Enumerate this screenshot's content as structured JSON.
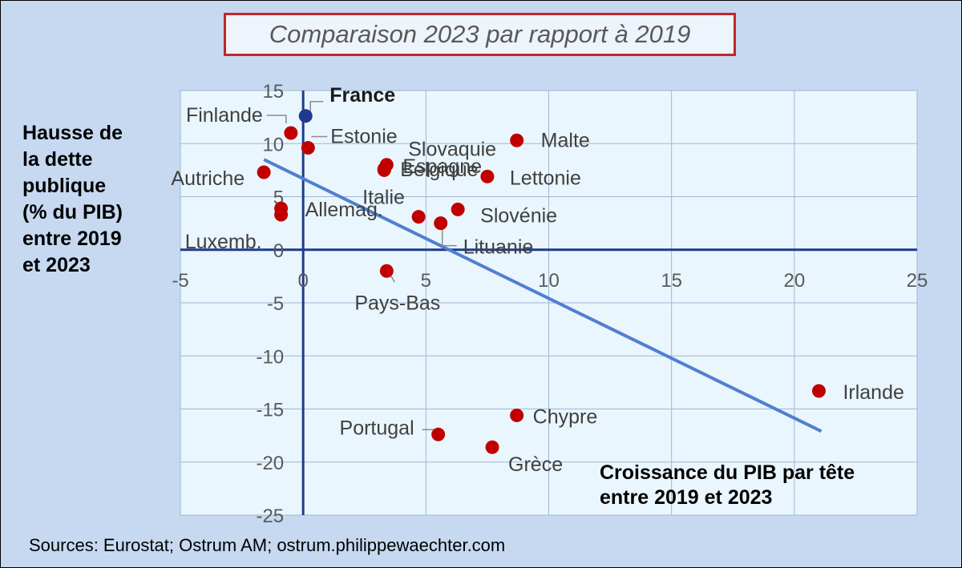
{
  "title": "Comparaison 2023 par rapport à 2019",
  "ylabel": "Hausse de\nla dette\npublique\n(% du PIB)\nentre 2019\net 2023",
  "xlabel": "Croissance du PIB par tête\nentre 2019 et 2023",
  "sources": "Sources: Eurostat; Ostrum AM; ostrum.philippewaechter.com",
  "colors": {
    "background": "#c6d9f1",
    "plot_area": "#eaf6fd",
    "grid": "#9fb7d3",
    "axis": "#1f3a8a",
    "point": "#c00000",
    "france_point": "#1f3a93",
    "trend": "#4f7fd0",
    "title_border": "#c0272d",
    "label_text": "#404040"
  },
  "chart_data": {
    "type": "scatter",
    "title": "Comparaison 2023 par rapport à 2019",
    "xlabel": "Croissance du PIB par tête entre 2019 et 2023",
    "ylabel": "Hausse de la dette publique (% du PIB) entre 2019 et 2023",
    "xlim": [
      -5,
      25
    ],
    "ylim": [
      -25,
      15
    ],
    "xticks": [
      -5,
      0,
      5,
      10,
      15,
      20,
      25
    ],
    "yticks": [
      -25,
      -20,
      -15,
      -10,
      -5,
      0,
      5,
      10,
      15
    ],
    "grid": true,
    "points": [
      {
        "label": "France",
        "x": 0.1,
        "y": 12.6,
        "highlight": true
      },
      {
        "label": "Finlande",
        "x": -0.5,
        "y": 11.0
      },
      {
        "label": "Estonie",
        "x": 0.2,
        "y": 9.6
      },
      {
        "label": "Espagne",
        "x": 3.4,
        "y": 8.0
      },
      {
        "label": "Slovaquie",
        "x": 3.3,
        "y": 7.5
      },
      {
        "label": "Malte",
        "x": 8.7,
        "y": 10.3
      },
      {
        "label": "Belgique",
        "x": 3.3,
        "y": 7.6
      },
      {
        "label": "Lettonie",
        "x": 7.5,
        "y": 6.9
      },
      {
        "label": "Autriche",
        "x": -1.6,
        "y": 7.3
      },
      {
        "label": "Italie",
        "x": 4.7,
        "y": 3.1
      },
      {
        "label": "Allemag.",
        "x": -0.9,
        "y": 3.9
      },
      {
        "label": "Luxemb.",
        "x": -0.9,
        "y": 3.3
      },
      {
        "label": "Slovénie",
        "x": 6.3,
        "y": 3.8
      },
      {
        "label": "Lituanie",
        "x": 5.6,
        "y": 2.5
      },
      {
        "label": "Pays-Bas",
        "x": 3.4,
        "y": -2.0
      },
      {
        "label": "Irlande",
        "x": 21.0,
        "y": -13.3
      },
      {
        "label": "Chypre",
        "x": 8.7,
        "y": -15.6
      },
      {
        "label": "Portugal",
        "x": 5.5,
        "y": -17.4
      },
      {
        "label": "Grèce",
        "x": 7.7,
        "y": -18.6
      }
    ],
    "trendline": {
      "x": [
        -1.6,
        21.1
      ],
      "y": [
        8.5,
        -17.1
      ]
    }
  }
}
